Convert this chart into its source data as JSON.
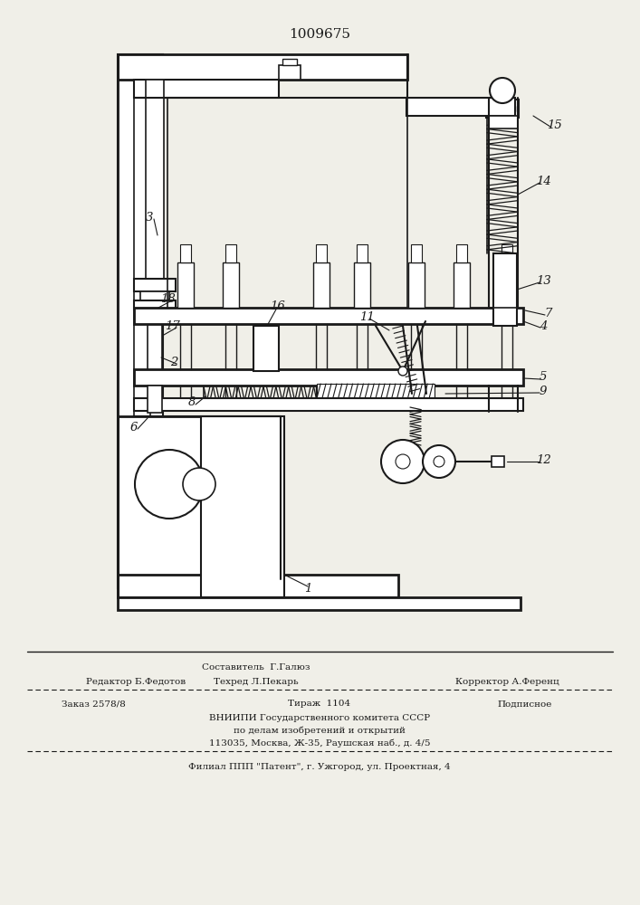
{
  "title_number": "1009675",
  "bg_color": "#f0efe8",
  "line_color": "#1a1a1a",
  "footer": {
    "compositor": "Составитель  Г.Галюз",
    "editor": "Редактор Б.Федотов",
    "techred": "Техред Л.Пекарь",
    "corrector": "Корректор А.Ференц",
    "order": "Заказ 2578/8",
    "tirazh": "Тираж  1104",
    "podpisnoe": "Подписное",
    "vniipи": "ВНИИПИ Государственного комитета СССР",
    "dela": "по делам изобретений и открытий",
    "address": "113035, Москва, Ж-35, Раушская наб., д. 4/5",
    "filial": "Филиал ППП \"Патент\", г. Ужгород, ул. Проектная, 4"
  }
}
